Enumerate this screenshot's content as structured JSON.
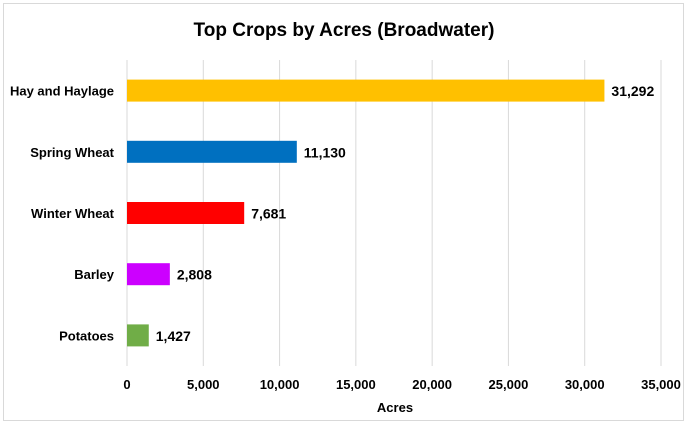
{
  "chart_data": {
    "type": "bar",
    "orientation": "horizontal",
    "title": "Top Crops by Acres (Broadwater)",
    "xlabel": "Acres",
    "ylabel": "",
    "xlim": [
      0,
      35000
    ],
    "xticks": [
      0,
      5000,
      10000,
      15000,
      20000,
      25000,
      30000,
      35000
    ],
    "xtick_labels": [
      "0",
      "5,000",
      "10,000",
      "15,000",
      "20,000",
      "25,000",
      "30,000",
      "35,000"
    ],
    "grid": "vertical",
    "legend": "none",
    "categories": [
      "Hay and Haylage",
      "Spring Wheat",
      "Winter Wheat",
      "Barley",
      "Potatoes"
    ],
    "values": [
      31292,
      11130,
      7681,
      2808,
      1427
    ],
    "data_labels": [
      "31,292",
      "11,130",
      "7,681",
      "2,808",
      "1,427"
    ],
    "colors": [
      "#FFC000",
      "#0070C0",
      "#FF0000",
      "#CC00FF",
      "#70AD47"
    ]
  }
}
